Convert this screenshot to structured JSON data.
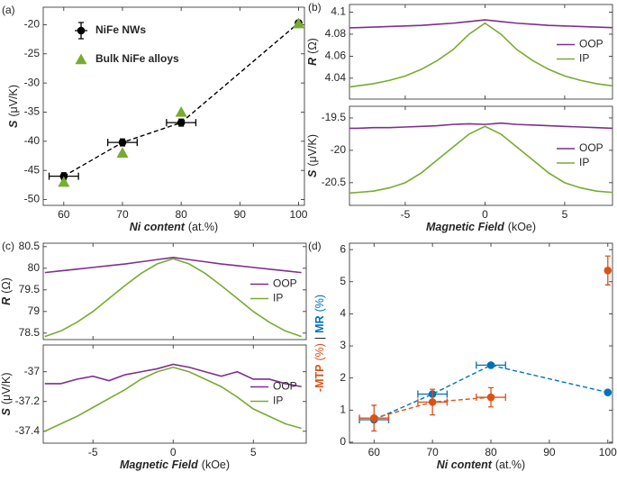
{
  "chart_data": [
    {
      "type": "scatter",
      "label": "(a)",
      "xlabel": [
        {
          "text": "Ni content",
          "style": "bold-italic"
        },
        {
          "text": "(at.%)"
        }
      ],
      "ylabel": [
        {
          "text": "S",
          "style": "bold-italic"
        },
        {
          "text": "(μV/K)"
        }
      ],
      "xlim": [
        56.5,
        101
      ],
      "xticks": [
        60,
        70,
        80,
        90,
        100
      ],
      "ylim": [
        -51,
        -17
      ],
      "yticks": [
        -50,
        -45,
        -40,
        -35,
        -30,
        -25,
        -20
      ],
      "legend": "upper left",
      "series": [
        {
          "name": "NiFe NWs",
          "color": "#000000",
          "marker": "o",
          "linestyle": "--",
          "x": [
            60,
            70,
            80,
            100
          ],
          "values": [
            -46,
            -40.2,
            -36.8,
            -19.7
          ],
          "xerr": [
            2.5,
            2.5,
            2.5,
            0
          ],
          "yerr": [
            0.6,
            0.6,
            0.6,
            0.3
          ]
        },
        {
          "name": "Bulk NiFe alloys",
          "color": "#77ac30",
          "marker": "^",
          "x": [
            60,
            70,
            80,
            100
          ],
          "values": [
            -47,
            -42,
            -35,
            -19.8
          ]
        }
      ]
    },
    {
      "type": "line",
      "label": "(b)",
      "ylabel": [
        {
          "text": "R",
          "style": "bold-italic"
        },
        {
          "text": "(Ω)"
        }
      ],
      "xlim": [
        -8.5,
        8
      ],
      "xticks": [
        -5,
        0,
        5
      ],
      "ylim": [
        4.021,
        4.107
      ],
      "yticks": [
        4.04,
        4.06,
        4.08,
        4.1
      ],
      "legend": "right",
      "series": [
        {
          "name": "OOP",
          "color": "#7e2f8e",
          "x": [
            -8.5,
            -8,
            -7,
            -6,
            -5,
            -4,
            -3,
            -2,
            -1,
            0,
            1,
            2,
            3,
            4,
            5,
            6,
            7,
            8
          ],
          "values": [
            4.0858,
            4.086,
            4.0865,
            4.087,
            4.0875,
            4.088,
            4.089,
            4.09,
            4.0915,
            4.093,
            4.0915,
            4.09,
            4.089,
            4.088,
            4.0875,
            4.087,
            4.0865,
            4.086
          ]
        },
        {
          "name": "IP",
          "color": "#77ac30",
          "x": [
            -8.5,
            -8,
            -7,
            -6,
            -5,
            -4,
            -3,
            -2,
            -1,
            0,
            1,
            2,
            3,
            4,
            5,
            6,
            7,
            8
          ],
          "values": [
            4.032,
            4.033,
            4.035,
            4.038,
            4.042,
            4.048,
            4.056,
            4.066,
            4.08,
            4.09,
            4.08,
            4.066,
            4.056,
            4.048,
            4.042,
            4.038,
            4.035,
            4.033
          ]
        }
      ]
    },
    {
      "type": "line",
      "xlabel": [
        {
          "text": "Magnetic Field",
          "style": "bold-italic"
        },
        {
          "text": "(kOe)"
        }
      ],
      "ylabel": [
        {
          "text": "S",
          "style": "bold-italic"
        },
        {
          "text": "(μV/K)"
        }
      ],
      "xlim": [
        -8.5,
        8
      ],
      "xticks": [
        -5,
        0,
        5
      ],
      "ylim": [
        -20.85,
        -19.32
      ],
      "yticks": [
        -20.5,
        -20,
        -19.5
      ],
      "legend": "right",
      "series": [
        {
          "name": "OOP",
          "color": "#7e2f8e",
          "x": [
            -8.5,
            -8,
            -7,
            -6,
            -5,
            -4,
            -3,
            -2,
            -1,
            0,
            1,
            2,
            3,
            4,
            5,
            6,
            7,
            8
          ],
          "values": [
            -19.66,
            -19.66,
            -19.65,
            -19.65,
            -19.64,
            -19.63,
            -19.62,
            -19.6,
            -19.59,
            -19.6,
            -19.58,
            -19.6,
            -19.61,
            -19.62,
            -19.63,
            -19.64,
            -19.65,
            -19.66
          ]
        },
        {
          "name": "IP",
          "color": "#77ac30",
          "x": [
            -8.5,
            -8,
            -7,
            -6,
            -5,
            -4,
            -3,
            -2,
            -1,
            0,
            1,
            2,
            3,
            4,
            5,
            6,
            7,
            8
          ],
          "values": [
            -20.66,
            -20.65,
            -20.63,
            -20.58,
            -20.5,
            -20.35,
            -20.15,
            -19.95,
            -19.75,
            -19.63,
            -19.75,
            -19.95,
            -20.15,
            -20.35,
            -20.5,
            -20.58,
            -20.63,
            -20.65
          ]
        }
      ]
    },
    {
      "type": "line",
      "label": "(c)",
      "ylabel": [
        {
          "text": "R",
          "style": "bold-italic"
        },
        {
          "text": "(Ω)"
        }
      ],
      "xlim": [
        -8.1,
        8.3
      ],
      "xticks": [
        -5,
        0,
        5
      ],
      "ylim": [
        78.35,
        80.58
      ],
      "yticks": [
        78.5,
        79,
        79.5,
        80,
        80.5
      ],
      "legend": "right",
      "series": [
        {
          "name": "OOP",
          "color": "#7e2f8e",
          "x": [
            -8,
            -7,
            -6,
            -5,
            -4,
            -3,
            -2,
            -1,
            0,
            1,
            2,
            3,
            4,
            5,
            6,
            7,
            8
          ],
          "values": [
            79.9,
            79.94,
            79.98,
            80.02,
            80.06,
            80.1,
            80.15,
            80.2,
            80.25,
            80.2,
            80.15,
            80.1,
            80.06,
            80.02,
            79.98,
            79.94,
            79.9
          ]
        },
        {
          "name": "IP",
          "color": "#77ac30",
          "x": [
            -8,
            -7,
            -6,
            -5,
            -4,
            -3,
            -2,
            -1,
            0,
            1,
            2,
            3,
            4,
            5,
            6,
            7,
            8
          ],
          "values": [
            78.42,
            78.55,
            78.75,
            79.0,
            79.3,
            79.6,
            79.88,
            80.1,
            80.22,
            80.1,
            79.88,
            79.6,
            79.3,
            79.0,
            78.75,
            78.55,
            78.42
          ]
        }
      ]
    },
    {
      "type": "line",
      "xlabel": [
        {
          "text": "Magnetic Field",
          "style": "bold-italic"
        },
        {
          "text": "(kOe)"
        }
      ],
      "ylabel": [
        {
          "text": "S",
          "style": "bold-italic"
        },
        {
          "text": "(μV/K)"
        }
      ],
      "xlim": [
        -8.1,
        8.3
      ],
      "xticks": [
        -5,
        0,
        5
      ],
      "ylim": [
        -37.48,
        -36.82
      ],
      "yticks": [
        -37.4,
        -37.2,
        -37
      ],
      "legend": "right",
      "series": [
        {
          "name": "OOP",
          "color": "#7e2f8e",
          "x": [
            -8,
            -7,
            -6,
            -5,
            -4,
            -3,
            -2,
            -1,
            0,
            1,
            2,
            3,
            4,
            5,
            6,
            7,
            8
          ],
          "values": [
            -37.08,
            -37.08,
            -37.05,
            -37.03,
            -37.06,
            -37.02,
            -37.0,
            -36.98,
            -36.95,
            -36.97,
            -37.0,
            -37.03,
            -37.0,
            -37.05,
            -37.05,
            -37.08,
            -37.1
          ]
        },
        {
          "name": "IP",
          "color": "#77ac30",
          "x": [
            -8,
            -7,
            -6,
            -5,
            -4,
            -3,
            -2,
            -1,
            0,
            1,
            2,
            3,
            4,
            5,
            6,
            7,
            8
          ],
          "values": [
            -37.4,
            -37.35,
            -37.3,
            -37.24,
            -37.18,
            -37.12,
            -37.05,
            -37.0,
            -36.97,
            -37.0,
            -37.05,
            -37.1,
            -37.17,
            -37.25,
            -37.3,
            -37.35,
            -37.38
          ]
        }
      ]
    },
    {
      "type": "scatter",
      "label": "(d)",
      "xlabel": [
        {
          "text": "Ni content",
          "style": "bold-italic"
        },
        {
          "text": "(at.%)"
        }
      ],
      "ylabel": [
        {
          "text": "-MTP",
          "style": "bold",
          "color": "#d95319"
        },
        {
          "text": "(%)",
          "color": "#d95319"
        },
        {
          "text": "|"
        },
        {
          "text": "MR",
          "style": "bold",
          "color": "#0072bd"
        },
        {
          "text": "(%)",
          "color": "#0072bd"
        }
      ],
      "xlim": [
        55.8,
        100.8
      ],
      "xticks": [
        60,
        70,
        80,
        90,
        100
      ],
      "ylim": [
        -0.03,
        6.2
      ],
      "yticks": [
        0,
        1,
        2,
        3,
        4,
        5,
        6
      ],
      "series": [
        {
          "color": "#0072bd",
          "marker": "o",
          "linestyle": "--",
          "x": [
            60,
            70,
            80,
            100
          ],
          "values": [
            0.7,
            1.5,
            2.4,
            1.55
          ],
          "xerr": [
            2.5,
            2.5,
            2.5,
            0
          ]
        },
        {
          "color": "#d95319",
          "marker": "o",
          "linestyle": "--",
          "x": [
            60,
            70,
            80
          ],
          "values": [
            0.75,
            1.25,
            1.4
          ],
          "xerr": [
            2.5,
            2.5,
            2.5
          ],
          "yerr": [
            0.4,
            0.4,
            0.3
          ]
        },
        {
          "color": "#d95319",
          "marker": "o",
          "x": [
            100
          ],
          "values": [
            5.35
          ],
          "yerr": [
            0.45
          ]
        }
      ]
    }
  ]
}
